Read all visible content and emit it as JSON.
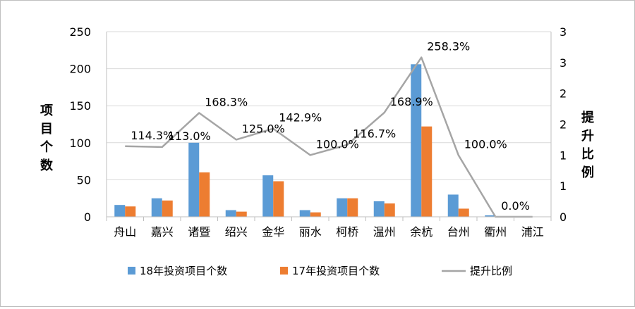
{
  "chart_data": {
    "type": "bar",
    "categories": [
      "舟山",
      "嘉兴",
      "诸暨",
      "绍兴",
      "金华",
      "丽水",
      "柯桥",
      "温州",
      "余杭",
      "台州",
      "衢州",
      "浦江"
    ],
    "series": [
      {
        "name": "18年投资项目个数",
        "type": "bar",
        "axis": "left",
        "color": "#5b9bd5",
        "values": [
          16,
          25,
          100,
          9,
          56,
          9,
          25,
          21,
          206,
          30,
          2,
          0
        ]
      },
      {
        "name": "17年投资项目个数",
        "type": "bar",
        "axis": "left",
        "color": "#ed7d31",
        "values": [
          14,
          22,
          60,
          7,
          48,
          6,
          25,
          18,
          122,
          11,
          0,
          0
        ]
      },
      {
        "name": "提升比例",
        "type": "line",
        "axis": "right",
        "color": "#a5a5a5",
        "values": [
          1.143,
          1.13,
          1.683,
          1.25,
          1.429,
          1.0,
          1.167,
          1.689,
          2.583,
          1.0,
          0,
          0
        ]
      }
    ],
    "data_labels": [
      "114.3%",
      "113.0%",
      "168.3%",
      "125.0%",
      "142.9%",
      "100.0%",
      "116.7%",
      "168.9%",
      "258.3%",
      "100.0%",
      "0.0%",
      ""
    ],
    "ylabel": "项目个数",
    "y2label": "提升比例",
    "ylim": [
      0,
      250
    ],
    "y2lim": [
      0,
      3
    ],
    "yticks": [
      "0",
      "50",
      "100",
      "150",
      "200",
      "250"
    ],
    "y2ticks": [
      "0",
      "1",
      "1",
      "2",
      "2",
      "3",
      "3"
    ],
    "grid": true,
    "legend_position": "bottom"
  }
}
